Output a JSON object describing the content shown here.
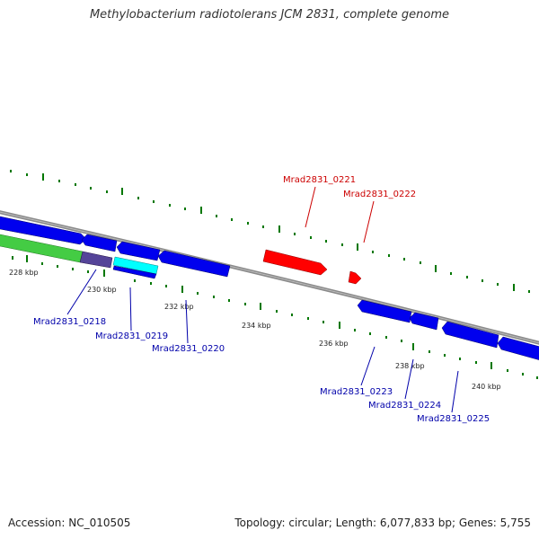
{
  "title": "Methylobacterium radiotolerans JCM 2831, complete genome",
  "footer": {
    "accession": "Accession: NC_010505",
    "summary": "Topology: circular; Length: 6,077,833 bp; Genes: 5,755"
  },
  "scale_labels": [
    "228 kbp",
    "230 kbp",
    "232 kbp",
    "234 kbp",
    "236 kbp",
    "238 kbp",
    "240 kbp"
  ],
  "colors": {
    "forward_gene": "#ff0000",
    "reverse_gene": "#0000ee",
    "backbone": "#888888",
    "tick": "#007700",
    "label_forward": "#cc0000",
    "label_reverse": "#0000aa",
    "green_feature": "#44cc44",
    "purple_feature": "#554499",
    "cyan_feature": "#00ffff"
  },
  "gene_labels_forward": [
    "Mrad2831_0221",
    "Mrad2831_0222"
  ],
  "gene_labels_reverse": [
    "Mrad2831_0218",
    "Mrad2831_0219",
    "Mrad2831_0220",
    "Mrad2831_0223",
    "Mrad2831_0224",
    "Mrad2831_0225"
  ]
}
